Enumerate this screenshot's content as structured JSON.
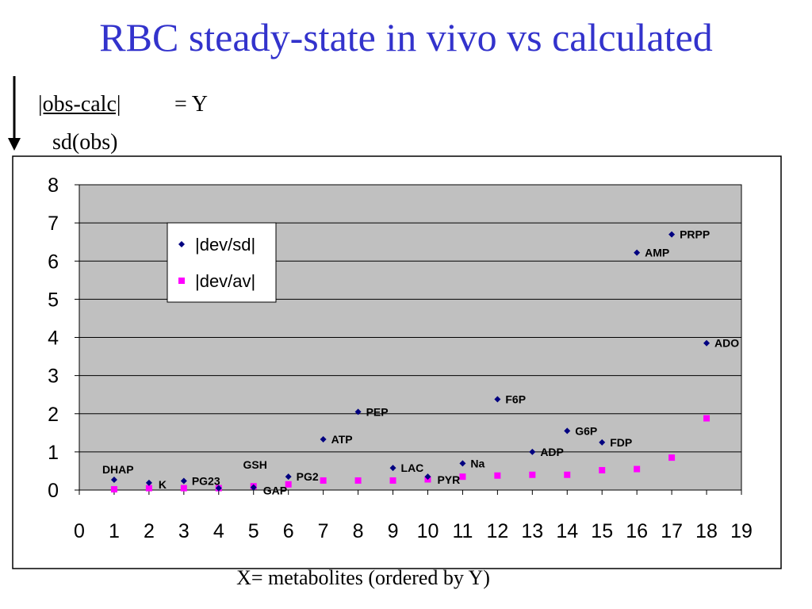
{
  "title": "RBC steady-state in vivo vs calculated",
  "formula": {
    "numerator": "|obs-calc|",
    "equals": "= Y",
    "denominator": "sd(obs)"
  },
  "x_caption": "X= metabolites (ordered by Y)",
  "colors": {
    "title": "#3333cc",
    "plot_bg": "#c0c0c0",
    "series_sd": "#000080",
    "series_av": "#ff00ff"
  },
  "chart_data": {
    "type": "scatter",
    "title": "",
    "xlabel": "",
    "ylabel": "",
    "xlim": [
      0,
      19
    ],
    "ylim": [
      0,
      8
    ],
    "x_ticks": [
      "0",
      "1",
      "2",
      "3",
      "4",
      "5",
      "6",
      "7",
      "8",
      "9",
      "10",
      "11",
      "12",
      "13",
      "14",
      "15",
      "16",
      "17",
      "18",
      "19"
    ],
    "y_ticks": [
      "0",
      "1",
      "2",
      "3",
      "4",
      "5",
      "6",
      "7",
      "8"
    ],
    "grid": "horizontal",
    "legend_position": "top-left",
    "series": [
      {
        "name": "|dev/sd|",
        "marker": "diamond",
        "points": [
          {
            "x": 1,
            "y": 0.27,
            "label": "DHAP"
          },
          {
            "x": 2,
            "y": 0.19,
            "label": "K"
          },
          {
            "x": 3,
            "y": 0.24,
            "label": "PG23"
          },
          {
            "x": 4,
            "y": 0.05,
            "label": ""
          },
          {
            "x": 5,
            "y": 0.07,
            "label": "GAP"
          },
          {
            "x": 6,
            "y": 0.35,
            "label": "PG2"
          },
          {
            "x": 7,
            "y": 1.33,
            "label": "ATP"
          },
          {
            "x": 8,
            "y": 2.05,
            "label": "PEP"
          },
          {
            "x": 9,
            "y": 0.58,
            "label": "LAC"
          },
          {
            "x": 10,
            "y": 0.35,
            "label": "PYR"
          },
          {
            "x": 11,
            "y": 0.7,
            "label": "Na"
          },
          {
            "x": 12,
            "y": 2.38,
            "label": "F6P"
          },
          {
            "x": 13,
            "y": 1.0,
            "label": "ADP"
          },
          {
            "x": 14,
            "y": 1.55,
            "label": "G6P"
          },
          {
            "x": 15,
            "y": 1.25,
            "label": "FDP"
          },
          {
            "x": 16,
            "y": 6.22,
            "label": "AMP"
          },
          {
            "x": 17,
            "y": 6.7,
            "label": "PRPP"
          },
          {
            "x": 18,
            "y": 3.85,
            "label": "ADO"
          }
        ]
      },
      {
        "name": "|dev/av|",
        "marker": "square",
        "points": [
          {
            "x": 1,
            "y": 0.02
          },
          {
            "x": 2,
            "y": 0.05
          },
          {
            "x": 3,
            "y": 0.05
          },
          {
            "x": 4,
            "y": 0.05
          },
          {
            "x": 5,
            "y": 0.1
          },
          {
            "x": 6,
            "y": 0.15
          },
          {
            "x": 7,
            "y": 0.25
          },
          {
            "x": 8,
            "y": 0.25
          },
          {
            "x": 9,
            "y": 0.25
          },
          {
            "x": 10,
            "y": 0.28
          },
          {
            "x": 11,
            "y": 0.35
          },
          {
            "x": 12,
            "y": 0.38
          },
          {
            "x": 13,
            "y": 0.4
          },
          {
            "x": 14,
            "y": 0.4
          },
          {
            "x": 15,
            "y": 0.52
          },
          {
            "x": 16,
            "y": 0.55
          },
          {
            "x": 17,
            "y": 0.85
          },
          {
            "x": 18,
            "y": 1.88
          }
        ]
      }
    ],
    "free_labels": [
      {
        "text": "GSH",
        "x": 4.7,
        "y": 0.5
      }
    ]
  }
}
